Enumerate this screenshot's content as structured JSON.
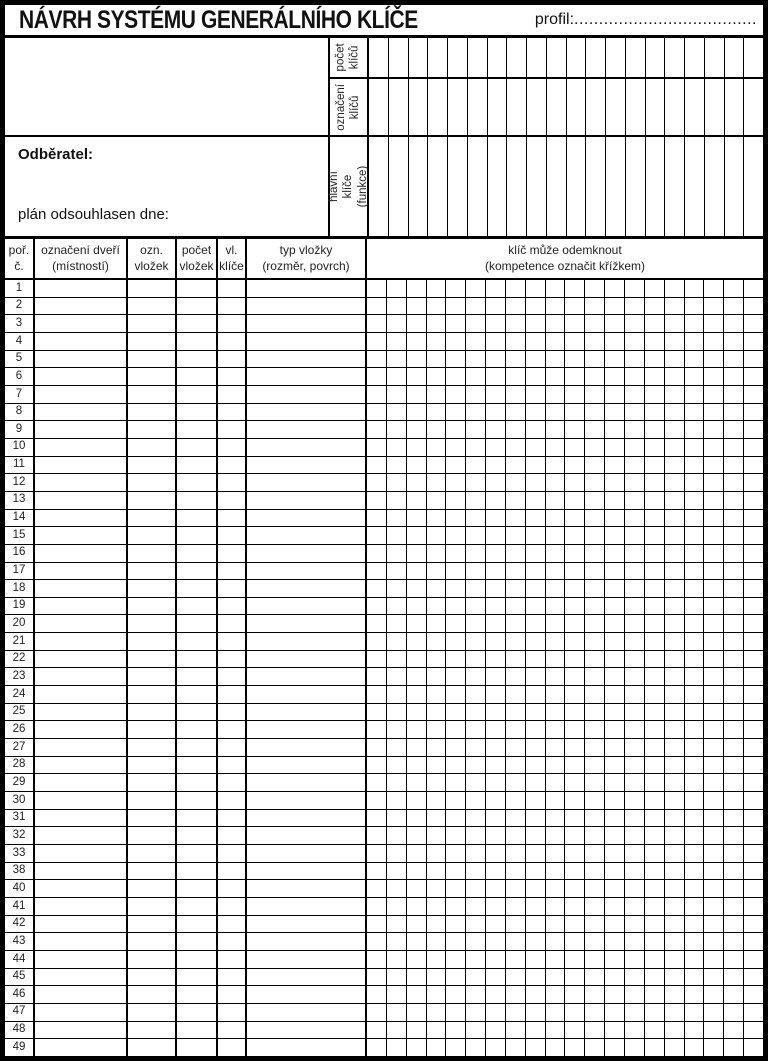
{
  "page": {
    "title": "NÁVRH SYSTÉMU GENERÁLNÍHO KLÍČE",
    "profil_label": "profil:",
    "profil_dots": "....................................."
  },
  "header": {
    "odberatel_label": "Odběratel:",
    "plan_label": "plán odsouhlasen dne:",
    "rotated_labels": [
      {
        "id": "pocet-klicu",
        "label": "počet\nklíčů"
      },
      {
        "id": "oznaceni-klicu",
        "label": "označení\nklíčů"
      },
      {
        "id": "hlavni-klice",
        "label": "hlavní klíče\n(funkce)"
      }
    ]
  },
  "table": {
    "columns": [
      {
        "label": "poř.\nč."
      },
      {
        "label": "označení dveří\n(místností)"
      },
      {
        "label": "ozn.\nvložek"
      },
      {
        "label": "počet\nvložek"
      },
      {
        "label": "vl.\nklíče"
      },
      {
        "label": "typ vložky\n(rozměr, povrch)"
      },
      {
        "label": "klíč může odemknout\n(kompetence označit křížkem)"
      }
    ],
    "grid_columns": 20,
    "row_numbers": [
      1,
      2,
      3,
      4,
      5,
      6,
      7,
      8,
      9,
      10,
      11,
      12,
      13,
      14,
      15,
      16,
      17,
      18,
      19,
      20,
      21,
      22,
      23,
      24,
      25,
      26,
      27,
      28,
      29,
      30,
      31,
      32,
      33,
      38,
      40,
      41,
      42,
      43,
      44,
      45,
      46,
      47,
      48,
      49
    ]
  },
  "colors": {
    "line": "#000000",
    "background": "#ffffff"
  }
}
